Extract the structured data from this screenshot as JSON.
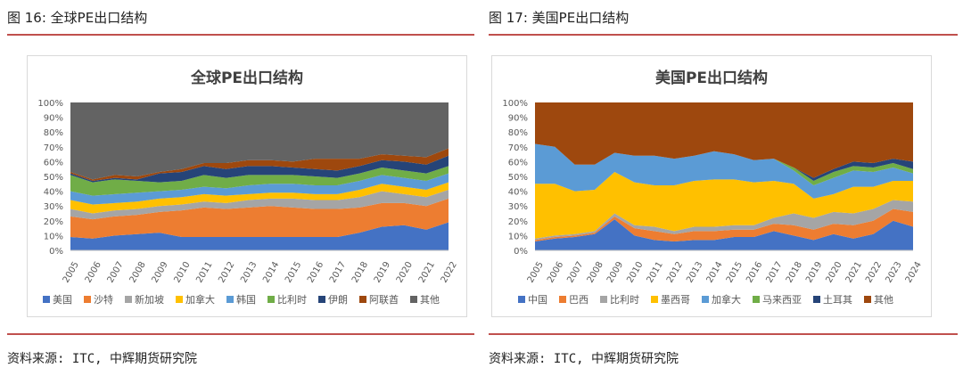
{
  "left": {
    "figure_title": "图 16: 全球PE出口结构",
    "source": "资料来源: ITC, 中辉期货研究院"
  },
  "right": {
    "figure_title": "图 17: 美国PE出口结构",
    "source": "资料来源: ITC, 中辉期货研究院"
  },
  "chart_data": [
    {
      "type": "area",
      "stacked": true,
      "title": "全球PE出口结构",
      "x": [
        "2005",
        "2006",
        "2007",
        "2008",
        "2009",
        "2010",
        "2011",
        "2012",
        "2013",
        "2014",
        "2015",
        "2016",
        "2017",
        "2018",
        "2019",
        "2020",
        "2021",
        "2022"
      ],
      "ylim": [
        0,
        100
      ],
      "yticks": [
        "0%",
        "10%",
        "20%",
        "30%",
        "40%",
        "50%",
        "60%",
        "70%",
        "80%",
        "90%",
        "100%"
      ],
      "legend_position": "bottom",
      "series": [
        {
          "name": "美国",
          "color": "#4472c4",
          "values": [
            9,
            8,
            10,
            11,
            12,
            9,
            9,
            9,
            9,
            9,
            9,
            9,
            9,
            12,
            16,
            17,
            14,
            19
          ]
        },
        {
          "name": "沙特",
          "color": "#ed7d31",
          "values": [
            14,
            13,
            13,
            13,
            14,
            18,
            20,
            19,
            20,
            21,
            20,
            19,
            19,
            17,
            16,
            15,
            16,
            16
          ]
        },
        {
          "name": "新加坡",
          "color": "#a5a5a5",
          "values": [
            5,
            4,
            4,
            4,
            4,
            4,
            4,
            4,
            5,
            5,
            6,
            6,
            6,
            7,
            8,
            6,
            6,
            6
          ]
        },
        {
          "name": "加拿大",
          "color": "#ffc000",
          "values": [
            6,
            6,
            5,
            5,
            5,
            5,
            5,
            5,
            4,
            4,
            4,
            4,
            4,
            5,
            5,
            5,
            5,
            5
          ]
        },
        {
          "name": "韩国",
          "color": "#5b9bd5",
          "values": [
            6,
            6,
            6,
            6,
            5,
            5,
            5,
            5,
            6,
            6,
            6,
            6,
            6,
            6,
            6,
            6,
            6,
            6
          ]
        },
        {
          "name": "比利时",
          "color": "#70ad47",
          "values": [
            11,
            9,
            10,
            8,
            6,
            6,
            8,
            7,
            7,
            6,
            6,
            6,
            5,
            5,
            5,
            5,
            5,
            5
          ]
        },
        {
          "name": "伊朗",
          "color": "#264478",
          "values": [
            1,
            1,
            1,
            1,
            6,
            6,
            6,
            6,
            6,
            6,
            5,
            5,
            5,
            5,
            5,
            6,
            6,
            7
          ]
        },
        {
          "name": "阿联酋",
          "color": "#9e480e",
          "values": [
            1,
            1,
            2,
            2,
            1,
            2,
            2,
            4,
            4,
            4,
            4,
            7,
            8,
            5,
            4,
            4,
            5,
            5
          ]
        },
        {
          "name": "其他",
          "color": "#636363",
          "values": [
            47,
            52,
            49,
            50,
            47,
            45,
            41,
            41,
            39,
            39,
            40,
            38,
            38,
            38,
            35,
            36,
            37,
            31
          ]
        }
      ]
    },
    {
      "type": "area",
      "stacked": true,
      "title": "美国PE出口结构",
      "x": [
        "2005",
        "2006",
        "2007",
        "2008",
        "2009",
        "2010",
        "2011",
        "2012",
        "2013",
        "2014",
        "2015",
        "2016",
        "2017",
        "2018",
        "2019",
        "2020",
        "2021",
        "2022",
        "2023",
        "2024"
      ],
      "ylim": [
        0,
        100
      ],
      "yticks": [
        "0%",
        "10%",
        "20%",
        "30%",
        "40%",
        "50%",
        "60%",
        "70%",
        "80%",
        "90%",
        "100%"
      ],
      "legend_position": "bottom",
      "series": [
        {
          "name": "中国",
          "color": "#4472c4",
          "values": [
            6,
            8,
            9,
            11,
            21,
            10,
            7,
            6,
            7,
            7,
            9,
            9,
            13,
            10,
            7,
            11,
            8,
            11,
            20,
            16
          ]
        },
        {
          "name": "巴西",
          "color": "#ed7d31",
          "values": [
            1,
            1,
            1,
            1,
            2,
            5,
            6,
            5,
            6,
            6,
            5,
            5,
            5,
            7,
            7,
            7,
            9,
            9,
            8,
            10
          ]
        },
        {
          "name": "比利时",
          "color": "#a5a5a5",
          "values": [
            1,
            1,
            1,
            1,
            2,
            2,
            3,
            2,
            3,
            3,
            3,
            3,
            4,
            8,
            8,
            8,
            8,
            8,
            6,
            7
          ]
        },
        {
          "name": "墨西哥",
          "color": "#ffc000",
          "values": [
            37,
            35,
            29,
            28,
            28,
            29,
            28,
            31,
            31,
            32,
            31,
            29,
            25,
            20,
            13,
            12,
            18,
            15,
            13,
            14
          ]
        },
        {
          "name": "加拿大",
          "color": "#5b9bd5",
          "values": [
            27,
            25,
            18,
            17,
            13,
            18,
            20,
            18,
            17,
            19,
            17,
            15,
            15,
            9,
            9,
            11,
            11,
            10,
            9,
            5
          ]
        },
        {
          "name": "马来西亚",
          "color": "#70ad47",
          "values": [
            0,
            0,
            0,
            0,
            0,
            0,
            0,
            0,
            0,
            0,
            0,
            0,
            0,
            2,
            3,
            4,
            3,
            3,
            3,
            3
          ]
        },
        {
          "name": "土耳其",
          "color": "#264478",
          "values": [
            0,
            0,
            0,
            0,
            0,
            0,
            0,
            0,
            0,
            0,
            0,
            0,
            0,
            0,
            2,
            2,
            3,
            3,
            3,
            5
          ]
        },
        {
          "name": "其他",
          "color": "#9e480e",
          "values": [
            28,
            30,
            42,
            42,
            34,
            36,
            36,
            38,
            36,
            33,
            35,
            39,
            38,
            44,
            51,
            45,
            40,
            41,
            38,
            40
          ]
        }
      ]
    }
  ]
}
